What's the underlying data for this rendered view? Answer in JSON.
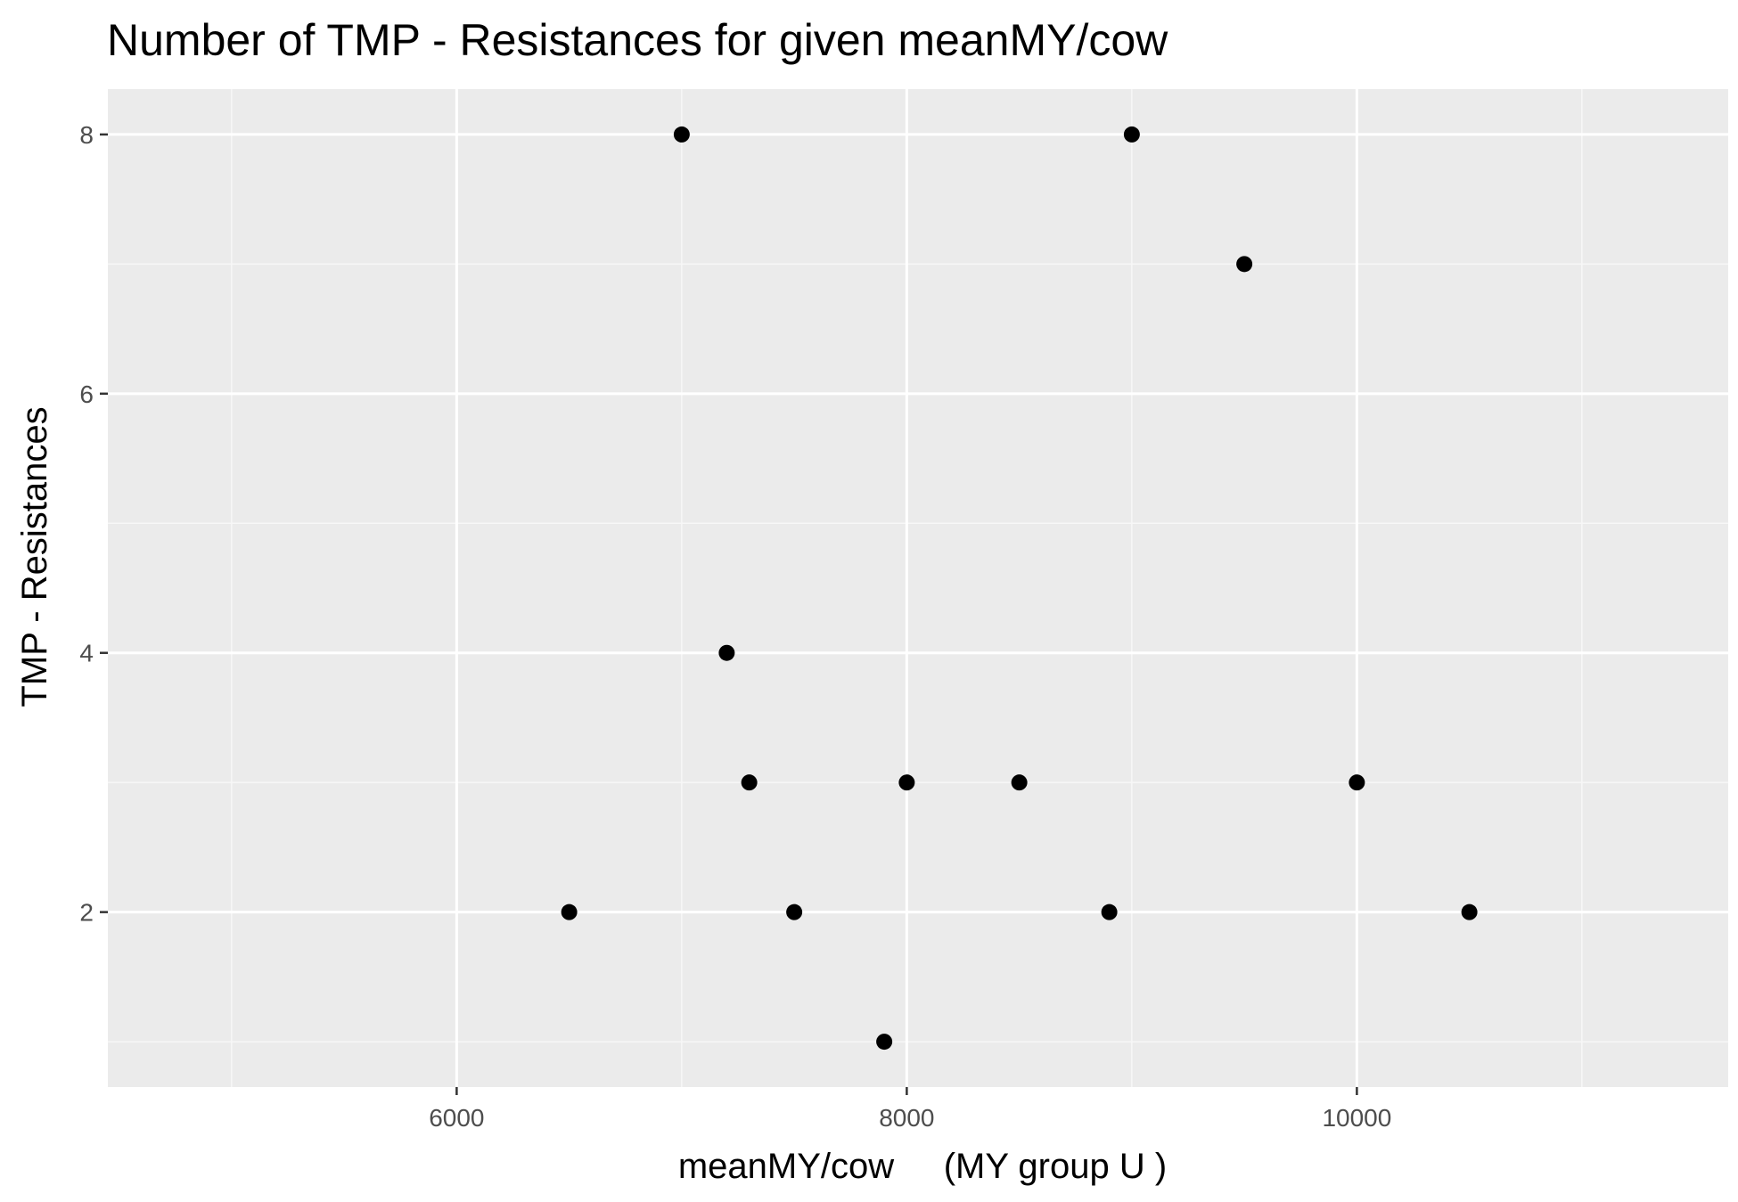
{
  "chart_data": {
    "type": "scatter",
    "title": "Number of TMP - Resistances for given meanMY/cow",
    "xlabel": "meanMY/cow     (MY group U )",
    "ylabel": "TMP - Resistances",
    "xlim": [
      4450,
      11650
    ],
    "ylim": [
      0.65,
      8.35
    ],
    "x_ticks": [
      6000,
      8000,
      10000
    ],
    "x_minor_ticks": [
      5000,
      7000,
      9000,
      11000
    ],
    "y_ticks": [
      2,
      4,
      6,
      8
    ],
    "y_minor_ticks": [
      1,
      3,
      5,
      7
    ],
    "x_tick_labels": [
      "6000",
      "8000",
      "10000"
    ],
    "y_tick_labels": [
      "2",
      "4",
      "6",
      "8"
    ],
    "grid": true,
    "colors": {
      "panel_background": "#ebebeb",
      "grid_major": "#ffffff",
      "grid_minor": "#f7f7f7",
      "point": "#000000",
      "tick_label": "#4d4d4d",
      "tick_mark": "#333333"
    },
    "points": [
      {
        "x": 6500,
        "y": 2
      },
      {
        "x": 7000,
        "y": 8
      },
      {
        "x": 7200,
        "y": 4
      },
      {
        "x": 7300,
        "y": 3
      },
      {
        "x": 7500,
        "y": 2
      },
      {
        "x": 7900,
        "y": 1
      },
      {
        "x": 8000,
        "y": 3
      },
      {
        "x": 8500,
        "y": 3
      },
      {
        "x": 8900,
        "y": 2
      },
      {
        "x": 9000,
        "y": 8
      },
      {
        "x": 9500,
        "y": 7
      },
      {
        "x": 10000,
        "y": 3
      },
      {
        "x": 10500,
        "y": 2
      }
    ]
  }
}
